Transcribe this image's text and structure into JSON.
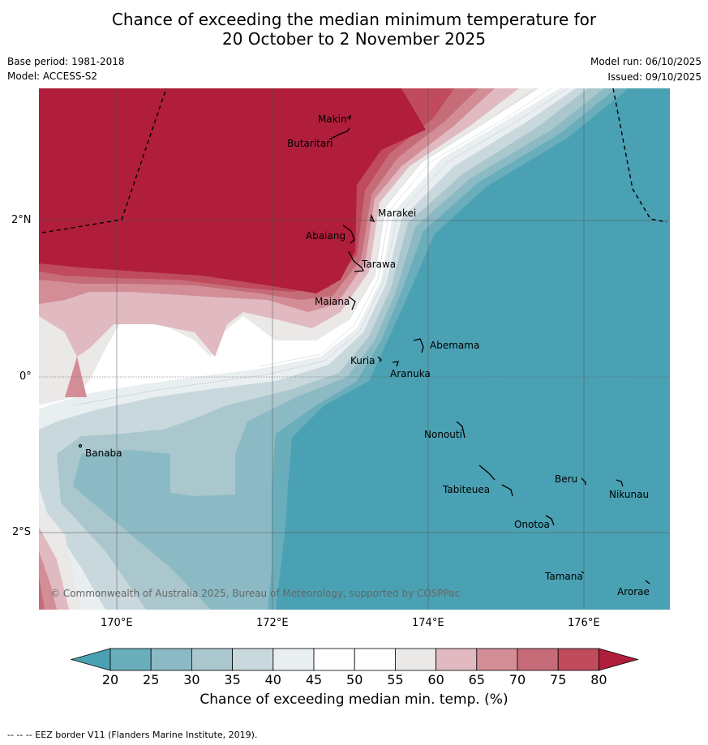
{
  "title_line1": "Chance of exceeding the median minimum temperature for",
  "title_line2": "20 October to 2 November 2025",
  "base_period": "Base period: 1981-2018",
  "model": "Model: ACCESS-S2",
  "model_run": "Model run: 06/10/2025",
  "issued": "Issued: 09/10/2025",
  "copyright": "© Commonwealth of Australia 2025, Bureau of Meteorology, supported by COSPPac",
  "lat_ticks": [
    "2°N",
    "0°",
    "2°S"
  ],
  "lon_ticks": [
    "170°E",
    "172°E",
    "174°E",
    "176°E"
  ],
  "islands": [
    "Makin",
    "Butaritari",
    "Marakei",
    "Abaiang",
    "Tarawa",
    "Maiana",
    "Abemama",
    "Kuria",
    "Aranuka",
    "Banaba",
    "Nonouti",
    "Tabiteuea",
    "Beru",
    "Nikunau",
    "Onotoa",
    "Tamana",
    "Arorae"
  ],
  "colorbar": {
    "ticks": [
      "20",
      "25",
      "30",
      "35",
      "40",
      "45",
      "50",
      "55",
      "60",
      "65",
      "70",
      "75",
      "80"
    ],
    "label": "Chance of exceeding median min. temp. (%)",
    "colors": [
      "#4aa1b3",
      "#6aaebb",
      "#8bbac4",
      "#a9c7cd",
      "#c9d8dd",
      "#e9eef1",
      "#ffffff",
      "#ffffff",
      "#ebe8e8",
      "#e1b9c0",
      "#d38d97",
      "#c66c78",
      "#bf4b5d",
      "#b01e3b"
    ]
  },
  "footer": "--  --  -- EEZ border V11 (Flanders Marine Institute, 2019)."
}
